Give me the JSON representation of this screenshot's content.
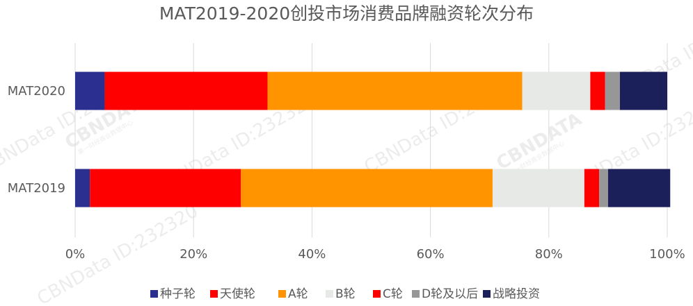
{
  "chart_data": {
    "type": "bar",
    "orientation": "horizontal",
    "stacked": true,
    "title": "MAT2019-2020创投市场消费品牌融资轮次分布",
    "categories": [
      "MAT2020",
      "MAT2019"
    ],
    "series": [
      {
        "name": "种子轮",
        "color": "#2b2f8f",
        "values": [
          5.0,
          2.5
        ]
      },
      {
        "name": "天使轮",
        "color": "#ff0000",
        "values": [
          27.5,
          25.5
        ]
      },
      {
        "name": "A轮",
        "color": "#ff9400",
        "values": [
          43.0,
          42.5
        ]
      },
      {
        "name": "B轮",
        "color": "#e7e9e6",
        "values": [
          11.5,
          15.5
        ]
      },
      {
        "name": "C轮",
        "color": "#ff0000",
        "values": [
          2.5,
          2.5
        ]
      },
      {
        "name": "D轮及以后",
        "color": "#979797",
        "values": [
          2.5,
          1.5
        ]
      },
      {
        "name": "战略投资",
        "color": "#1b1f5a",
        "values": [
          8.0,
          10.5
        ]
      }
    ],
    "xlim": [
      0,
      100
    ],
    "xticks": [
      "0%",
      "20%",
      "40%",
      "60%",
      "80%",
      "100%"
    ],
    "grid": true,
    "legend_position": "bottom"
  },
  "watermark": {
    "text": "CBNData ID:232320",
    "logo_text": "CBNDATA",
    "logo_subtext": "第一财经商业数据中心"
  }
}
